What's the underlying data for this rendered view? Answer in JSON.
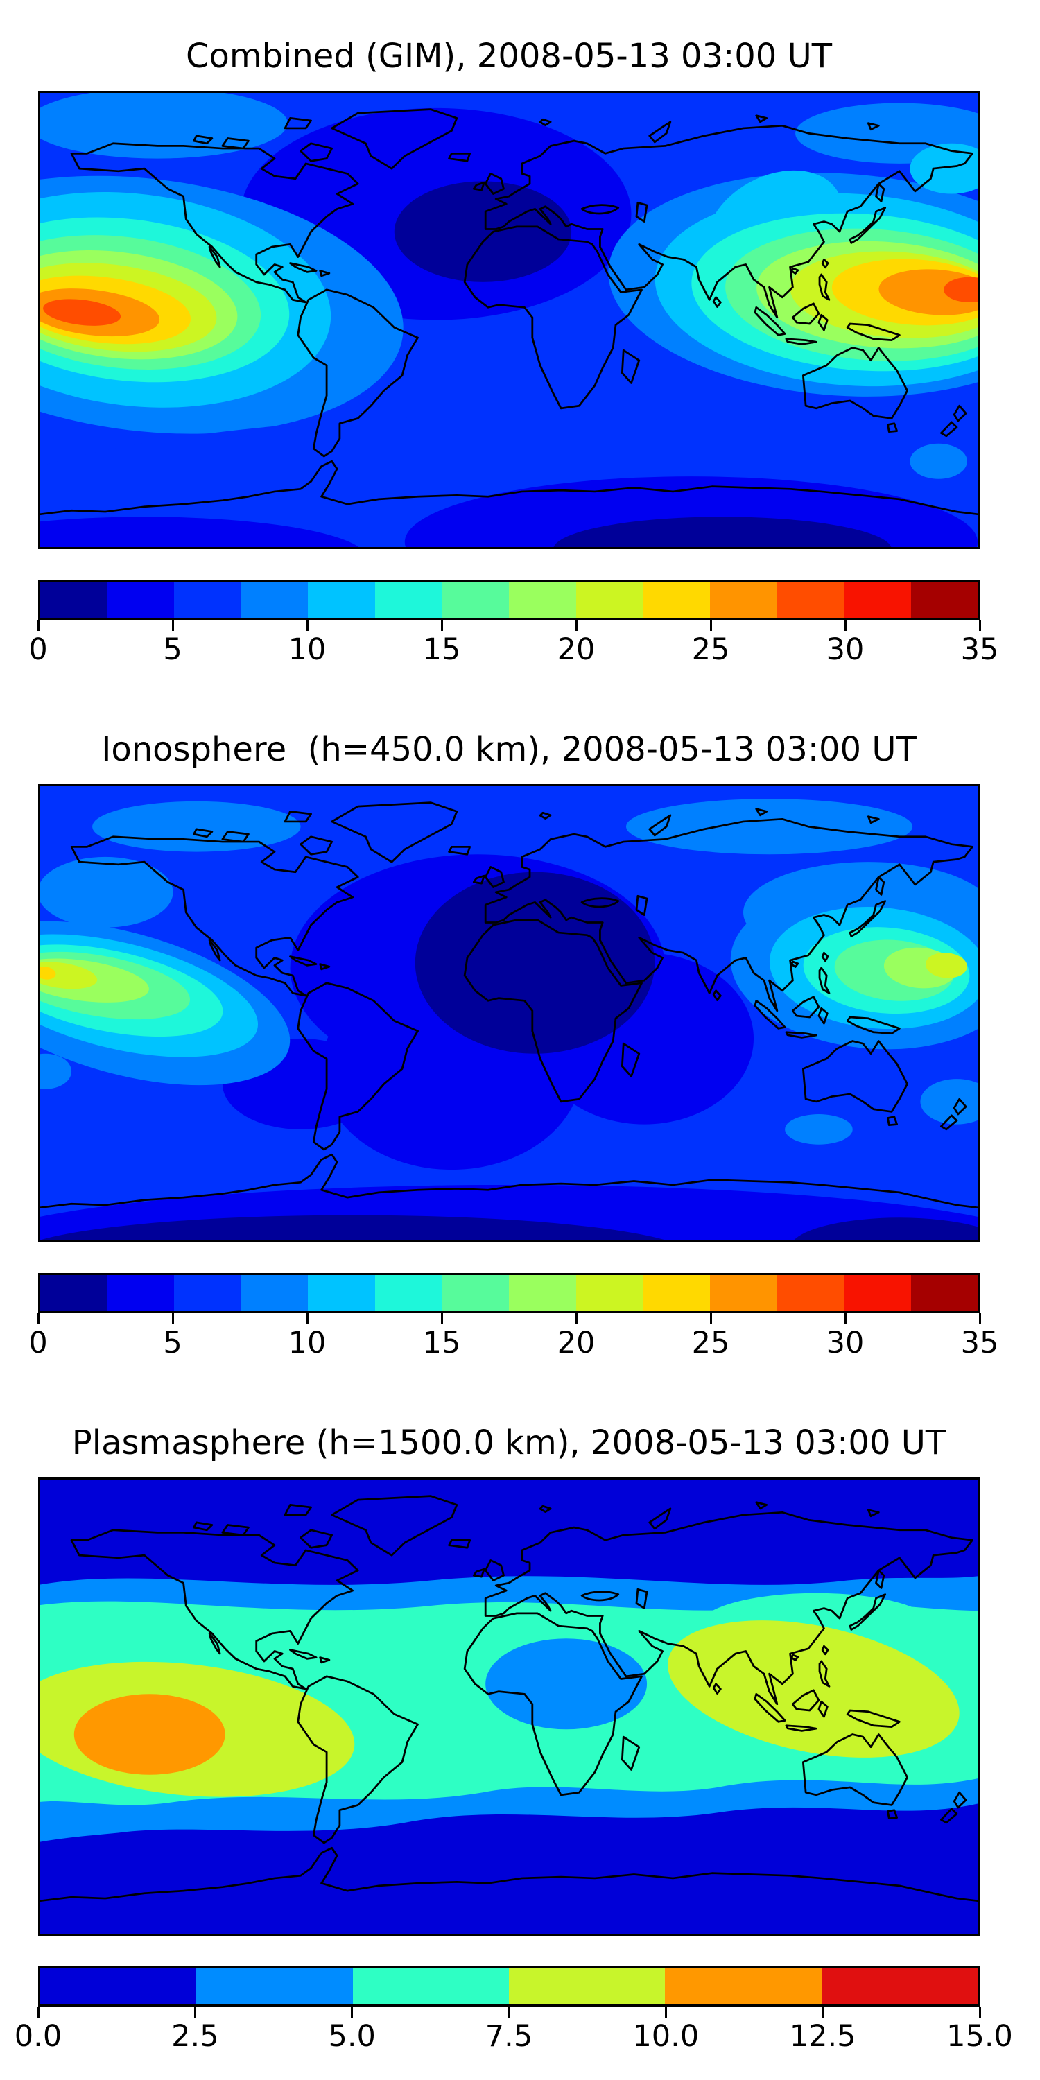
{
  "figure": {
    "background": "#ffffff",
    "text_color": "#000000",
    "panels": [
      {
        "id": "combined",
        "title": "Combined (GIM), 2008-05-13 03:00 UT",
        "colorbar": {
          "vmin": 0,
          "vmax": 35,
          "n_segments": 14,
          "palette": "jet14",
          "ticks": [
            "0",
            "5",
            "10",
            "15",
            "20",
            "25",
            "30",
            "35"
          ]
        }
      },
      {
        "id": "ionosphere",
        "title": "Ionosphere  (h=450.0 km), 2008-05-13 03:00 UT",
        "colorbar": {
          "vmin": 0,
          "vmax": 35,
          "n_segments": 14,
          "palette": "jet14",
          "ticks": [
            "0",
            "5",
            "10",
            "15",
            "20",
            "25",
            "30",
            "35"
          ]
        }
      },
      {
        "id": "plasmasphere",
        "title": "Plasmasphere (h=1500.0 km), 2008-05-13 03:00 UT",
        "colorbar": {
          "vmin": 0,
          "vmax": 15,
          "n_segments": 6,
          "palette": "jet6",
          "ticks": [
            "0.0",
            "2.5",
            "5.0",
            "7.5",
            "10.0",
            "12.5",
            "15.0"
          ]
        }
      }
    ],
    "palettes": {
      "jet14": [
        "#000099",
        "#0000f1",
        "#0032fe",
        "#0080ff",
        "#00c3ff",
        "#1ef7da",
        "#57fb9b",
        "#9aff5e",
        "#ccf522",
        "#ffd900",
        "#ff9400",
        "#ff4d00",
        "#f81300",
        "#a50000"
      ],
      "jet6": [
        "#0000d8",
        "#008cff",
        "#2effc4",
        "#c8f52b",
        "#ff9800",
        "#e01010"
      ]
    }
  },
  "chart_data": [
    {
      "type": "heatmap",
      "subtype": "filled-contour world map",
      "title": "Combined (GIM), 2008-05-13 03:00 UT",
      "projection": "equirectangular",
      "lon_range": [
        -180,
        180
      ],
      "lat_range": [
        -90,
        90
      ],
      "value_range": [
        0,
        35
      ],
      "contour_interval": 2.5,
      "levels": [
        0,
        2.5,
        5,
        7.5,
        10,
        12.5,
        15,
        17.5,
        20,
        22.5,
        25,
        27.5,
        30,
        32.5,
        35
      ],
      "colorbar_ticks": [
        0,
        5,
        10,
        15,
        20,
        25,
        30,
        35
      ],
      "legend_position": "below",
      "grid": false,
      "features": [
        {
          "name": "east-pacific-maximum",
          "lon": -152,
          "lat": 3,
          "value": 30
        },
        {
          "name": "west-pacific-maximum",
          "lon": 172,
          "lat": 12,
          "value": 30
        },
        {
          "name": "north-atlantic-europe-minimum",
          "lon": -15,
          "lat": 35,
          "value": 3
        },
        {
          "name": "south-indian-ocean-minimum",
          "lon": 75,
          "lat": -68,
          "value": 2
        }
      ]
    },
    {
      "type": "heatmap",
      "subtype": "filled-contour world map",
      "title": "Ionosphere  (h=450.0 km), 2008-05-13 03:00 UT",
      "projection": "equirectangular",
      "lon_range": [
        -180,
        180
      ],
      "lat_range": [
        -90,
        90
      ],
      "value_range": [
        0,
        35
      ],
      "contour_interval": 2.5,
      "levels": [
        0,
        2.5,
        5,
        7.5,
        10,
        12.5,
        15,
        17.5,
        20,
        22.5,
        25,
        27.5,
        30,
        32.5,
        35
      ],
      "colorbar_ticks": [
        0,
        5,
        10,
        15,
        20,
        25,
        30,
        35
      ],
      "legend_position": "below",
      "grid": false,
      "features": [
        {
          "name": "east-pacific-maximum",
          "lon": -177,
          "lat": 15,
          "value": 24
        },
        {
          "name": "west-pacific-maximum",
          "lon": 167,
          "lat": 19,
          "value": 21
        },
        {
          "name": "night-side-minimum-africa-atlantic-europe",
          "lon": 10,
          "lat": 20,
          "value": 2
        },
        {
          "name": "antarctic-minimum",
          "lon": -60,
          "lat": -78,
          "value": 2
        }
      ]
    },
    {
      "type": "heatmap",
      "subtype": "filled-contour world map",
      "title": "Plasmasphere (h=1500.0 km), 2008-05-13 03:00 UT",
      "projection": "equirectangular",
      "lon_range": [
        -180,
        180
      ],
      "lat_range": [
        -90,
        90
      ],
      "value_range": [
        0,
        15
      ],
      "contour_interval": 2.5,
      "levels": [
        0,
        2.5,
        5,
        7.5,
        10,
        12.5,
        15
      ],
      "colorbar_ticks": [
        0,
        2.5,
        5,
        7.5,
        10,
        12.5,
        15
      ],
      "legend_position": "below",
      "grid": false,
      "features": [
        {
          "name": "east-pacific-maximum",
          "lon": -138,
          "lat": -10,
          "value": 11
        },
        {
          "name": "equatorial-band",
          "lon": 0,
          "lat": -5,
          "value": 8.5
        },
        {
          "name": "asian-equatorial-band",
          "lon": 120,
          "lat": 5,
          "value": 8.5
        },
        {
          "name": "africa-local-low",
          "lon": 25,
          "lat": 10,
          "value": 4
        },
        {
          "name": "polar-minimum",
          "lon": 0,
          "lat": 75,
          "value": 1.5
        }
      ]
    }
  ]
}
